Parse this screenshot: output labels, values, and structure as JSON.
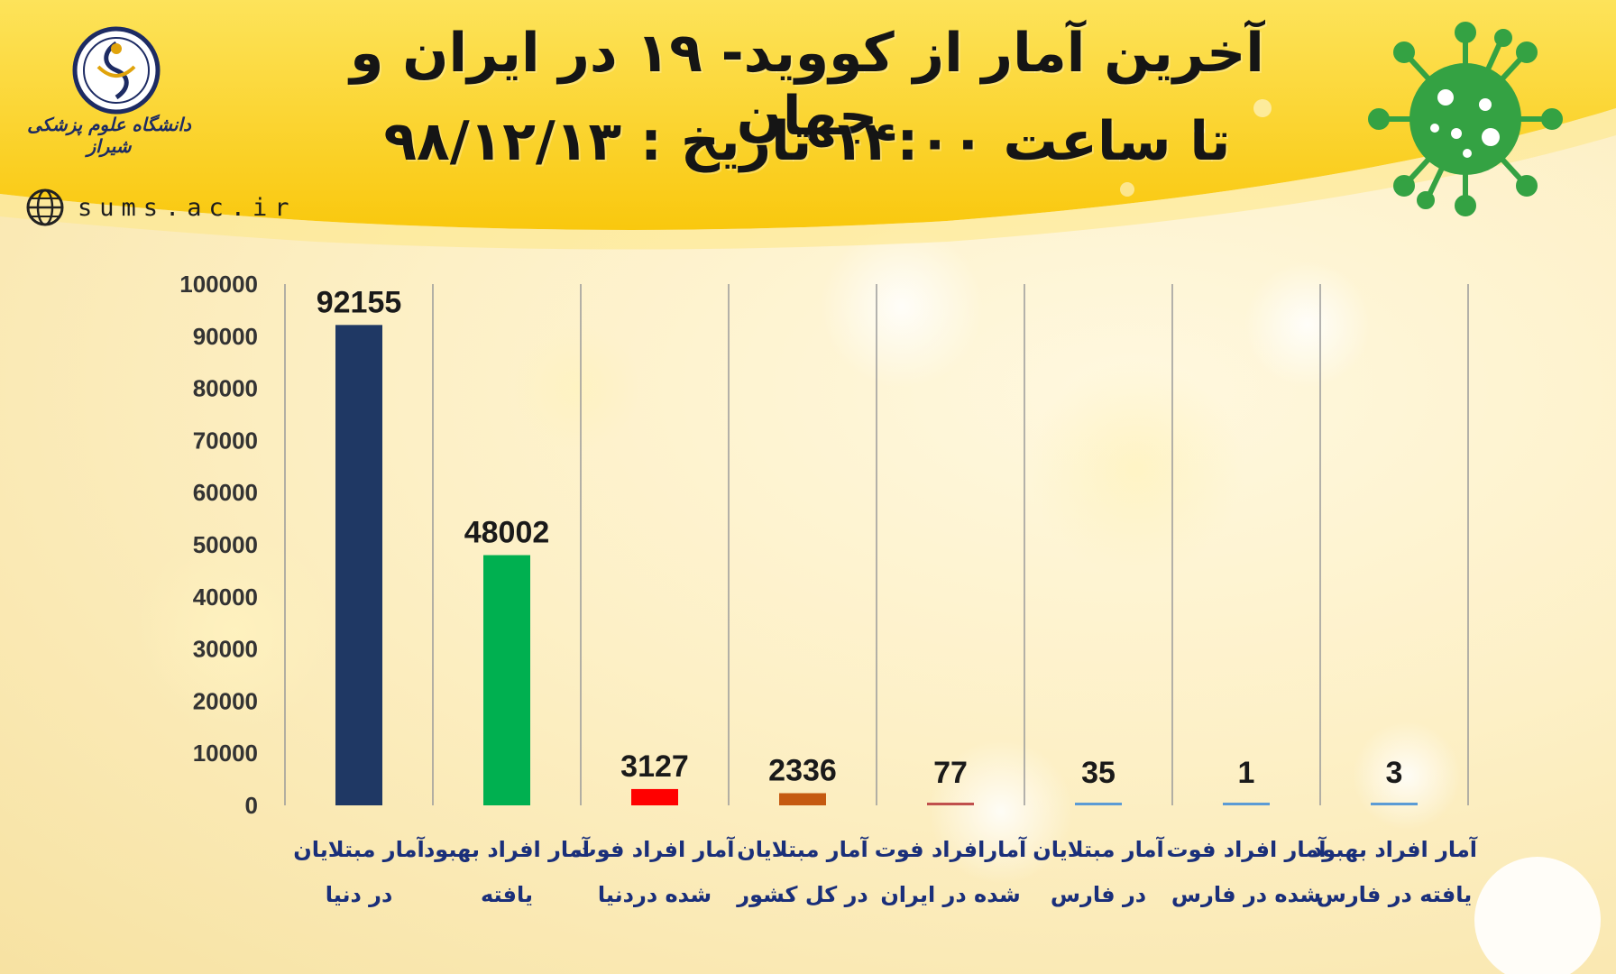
{
  "header": {
    "title_line1": "آخرین آمار از کووید- ۱۹ در ایران و جهان",
    "title_line2": "تا ساعت ۱۴:۰۰   تاریخ : ۹۸/۱۲/۱۳",
    "logo_text": "دانشگاه علوم پزشکی شیراز",
    "website": "sums.ac.ir"
  },
  "colors": {
    "banner": "#fcd021",
    "virus": "#34a243",
    "label_text": "#1a2f7a"
  },
  "chart_data": {
    "type": "bar",
    "ylim": [
      0,
      100000
    ],
    "yticks": [
      0,
      10000,
      20000,
      30000,
      40000,
      50000,
      60000,
      70000,
      80000,
      90000,
      100000
    ],
    "grid": "vertical separators",
    "categories": [
      [
        "آمار مبتلایان",
        "در دنیا"
      ],
      [
        "آمار افراد بهبود",
        "یافته"
      ],
      [
        "آمار افراد فوت",
        "شده دردنیا"
      ],
      [
        "آمار مبتلایان",
        "در کل کشور"
      ],
      [
        "آمارافراد فوت",
        "شده در ایران"
      ],
      [
        "آمار مبتلایان",
        "در فارس"
      ],
      [
        "آمار افراد فوت",
        "شده در فارس"
      ],
      [
        "آمار افراد بهبود",
        "یافته در فارس"
      ]
    ],
    "values": [
      92155,
      48002,
      3127,
      2336,
      77,
      35,
      1,
      3
    ],
    "bar_colors": [
      "#1f3864",
      "#00b050",
      "#ff0000",
      "#c55a11",
      "#c0504d",
      "#5b9bd5",
      "#5b9bd5",
      "#5b9bd5"
    ]
  }
}
